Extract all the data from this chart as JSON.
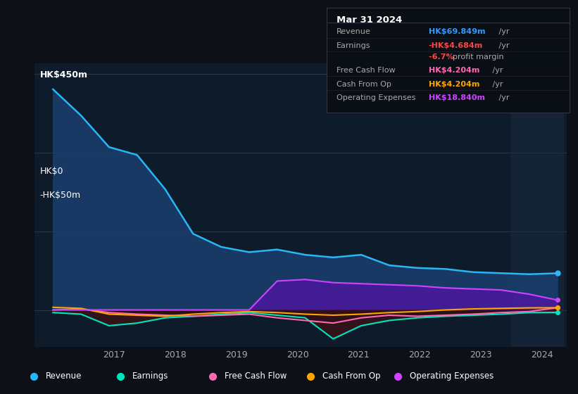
{
  "bg_color": "#0d1117",
  "plot_bg_color": "#0d1b2a",
  "grid_color": "#1e3a5f",
  "title_label": "HK$450m",
  "zero_label": "HK$0",
  "neg_label": "-HK$50m",
  "xlabel_years": [
    "2017",
    "2018",
    "2019",
    "2020",
    "2021",
    "2022",
    "2023",
    "2024"
  ],
  "info_box": {
    "date": "Mar 31 2024",
    "rows": [
      {
        "label": "Revenue",
        "value": "HK$69.849m /yr",
        "value_color": "#3399ff"
      },
      {
        "label": "Earnings",
        "value": "-HK$4.684m /yr",
        "value_color": "#ff4444"
      },
      {
        "label": "",
        "value": "-6.7% profit margin",
        "value_color": "#ff4444"
      },
      {
        "label": "Free Cash Flow",
        "value": "HK$4.204m /yr",
        "value_color": "#ff69b4"
      },
      {
        "label": "Cash From Op",
        "value": "HK$4.204m /yr",
        "value_color": "#ffa500"
      },
      {
        "label": "Operating Expenses",
        "value": "HK$18.840m /yr",
        "value_color": "#cc44ff"
      }
    ]
  },
  "series": {
    "revenue": {
      "color": "#29b6f6",
      "fill_color": "#1a3f6f",
      "alpha": 0.85,
      "values": [
        420,
        370,
        310,
        295,
        230,
        145,
        120,
        110,
        115,
        105,
        100,
        105,
        85,
        80,
        78,
        72,
        70,
        68,
        69.849
      ]
    },
    "operating_expenses": {
      "color": "#cc44ff",
      "fill_color": "#5511aa",
      "alpha": 0.7,
      "values": [
        0,
        0,
        0,
        0,
        0,
        0,
        0,
        0,
        55,
        58,
        52,
        50,
        48,
        46,
        42,
        40,
        38,
        30,
        18.84
      ]
    },
    "earnings": {
      "color": "#00e5c0",
      "fill_color": "#003322",
      "alpha": 0.5,
      "values": [
        -5,
        -8,
        -30,
        -25,
        -15,
        -12,
        -8,
        -5,
        -10,
        -15,
        -55,
        -30,
        -20,
        -15,
        -12,
        -10,
        -8,
        -5,
        -4.684
      ]
    },
    "free_cash_flow": {
      "color": "#ff69b4",
      "fill_color": "#5a1a2a",
      "alpha": 0.5,
      "values": [
        0,
        2,
        -5,
        -8,
        -10,
        -12,
        -10,
        -8,
        -15,
        -20,
        -25,
        -15,
        -10,
        -12,
        -10,
        -8,
        -5,
        -3,
        4.204
      ]
    },
    "cash_from_op": {
      "color": "#ffa500",
      "fill_color": "#3a2a00",
      "alpha": 0.5,
      "values": [
        5,
        3,
        -8,
        -10,
        -12,
        -8,
        -5,
        -3,
        -5,
        -8,
        -10,
        -8,
        -5,
        -3,
        0,
        2,
        3,
        4,
        4.204
      ]
    }
  },
  "legend": [
    {
      "label": "Revenue",
      "color": "#29b6f6"
    },
    {
      "label": "Earnings",
      "color": "#00e5c0"
    },
    {
      "label": "Free Cash Flow",
      "color": "#ff69b4"
    },
    {
      "label": "Cash From Op",
      "color": "#ffa500"
    },
    {
      "label": "Operating Expenses",
      "color": "#cc44ff"
    }
  ],
  "highlight_rect_color": "#1a2a3f",
  "ylim": [
    -70,
    470
  ],
  "xlim": [
    2015.7,
    2024.4
  ],
  "x_start": 2016.0,
  "x_end": 2024.25,
  "highlight_x_start": 2023.5,
  "highlight_x_end": 2024.35
}
